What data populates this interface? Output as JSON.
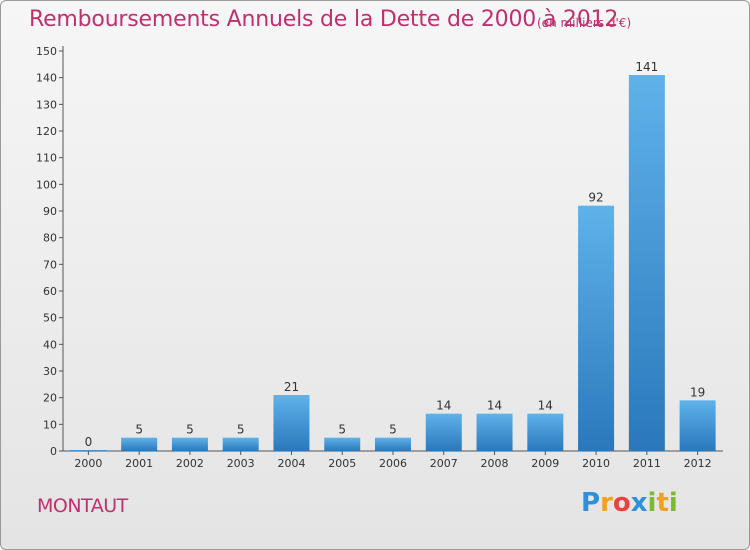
{
  "title": "Remboursements Annuels de la Dette de 2000 à 2012",
  "unit": "(en milliers d'€)",
  "commune": "MONTAUT",
  "logo": [
    "P",
    "r",
    "o",
    "x",
    "i",
    "t",
    "i"
  ],
  "colors": {
    "bar_top": "#5fb2ea",
    "bar_bottom": "#2a78bb",
    "title": "#c0306f"
  },
  "chart_data": {
    "type": "bar",
    "title": "Remboursements Annuels de la Dette de 2000 à 2012",
    "subtitle": "(en milliers d'€)",
    "categories": [
      "2000",
      "2001",
      "2002",
      "2003",
      "2004",
      "2005",
      "2006",
      "2007",
      "2008",
      "2009",
      "2010",
      "2011",
      "2012"
    ],
    "values": [
      0,
      5,
      5,
      5,
      21,
      5,
      5,
      14,
      14,
      14,
      92,
      141,
      19
    ],
    "ylim": [
      0,
      150
    ],
    "yticks": [
      0,
      10,
      20,
      30,
      40,
      50,
      60,
      70,
      80,
      90,
      100,
      110,
      120,
      130,
      140,
      150
    ],
    "grid": false,
    "legend": "none"
  }
}
